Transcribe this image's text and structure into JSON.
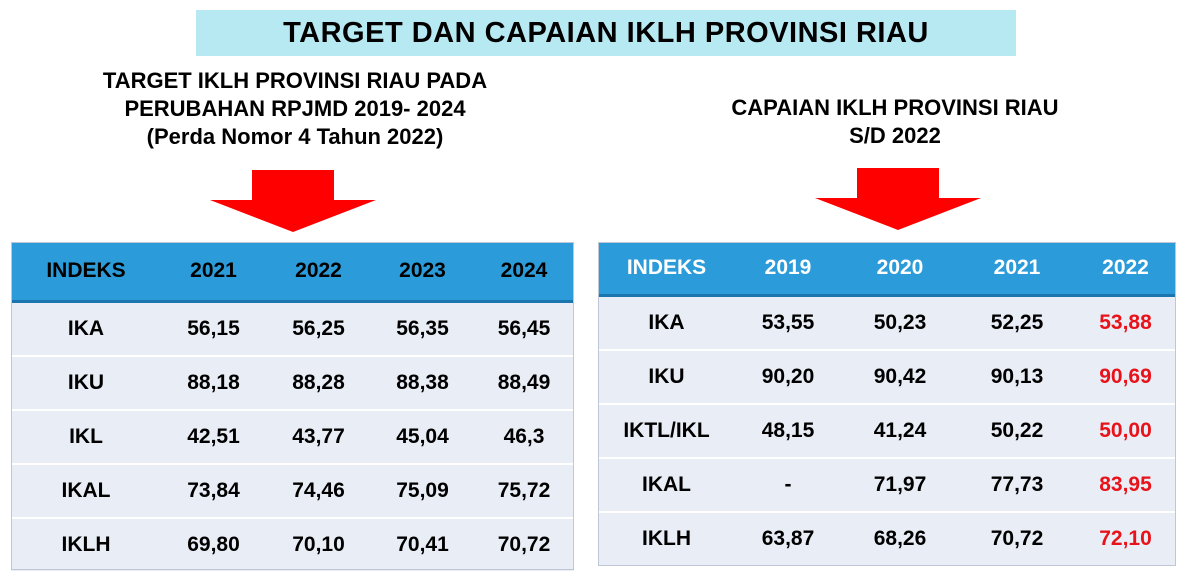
{
  "title": "TARGET DAN CAPAIAN IKLH PROVINSI RIAU",
  "left": {
    "heading_lines": [
      "TARGET IKLH PROVINSI RIAU PADA",
      "PERUBAHAN RPJMD 2019- 2024",
      "(Perda Nomor 4 Tahun 2022)"
    ],
    "columns": [
      "INDEKS",
      "2021",
      "2022",
      "2023",
      "2024"
    ],
    "rows": [
      [
        "IKA",
        "56,15",
        "56,25",
        "56,35",
        "56,45"
      ],
      [
        "IKU",
        "88,18",
        "88,28",
        "88,38",
        "88,49"
      ],
      [
        "IKL",
        "42,51",
        "43,77",
        "45,04",
        "46,3"
      ],
      [
        "IKAL",
        "73,84",
        "74,46",
        "75,09",
        "75,72"
      ],
      [
        "IKLH",
        "69,80",
        "70,10",
        "70,41",
        "70,72"
      ]
    ]
  },
  "right": {
    "heading_lines": [
      "CAPAIAN IKLH PROVINSI RIAU",
      "S/D 2022"
    ],
    "columns": [
      "INDEKS",
      "2019",
      "2020",
      "2021",
      "2022"
    ],
    "rows": [
      [
        "IKA",
        "53,55",
        "50,23",
        "52,25",
        "53,88"
      ],
      [
        "IKU",
        "90,20",
        "90,42",
        "90,13",
        "90,69"
      ],
      [
        "IKTL/IKL",
        "48,15",
        "41,24",
        "50,22",
        "50,00"
      ],
      [
        "IKAL",
        "-",
        "71,97",
        "77,73",
        "83,95"
      ],
      [
        "IKLH",
        "63,87",
        "68,26",
        "70,72",
        "72,10"
      ]
    ],
    "highlight_color": "#e8131a"
  },
  "colors": {
    "banner_bg": "#b7e9f2",
    "header_bg": "#2b9bd9",
    "row_bg": "#e9edf5",
    "arrow": "#ff0000"
  }
}
